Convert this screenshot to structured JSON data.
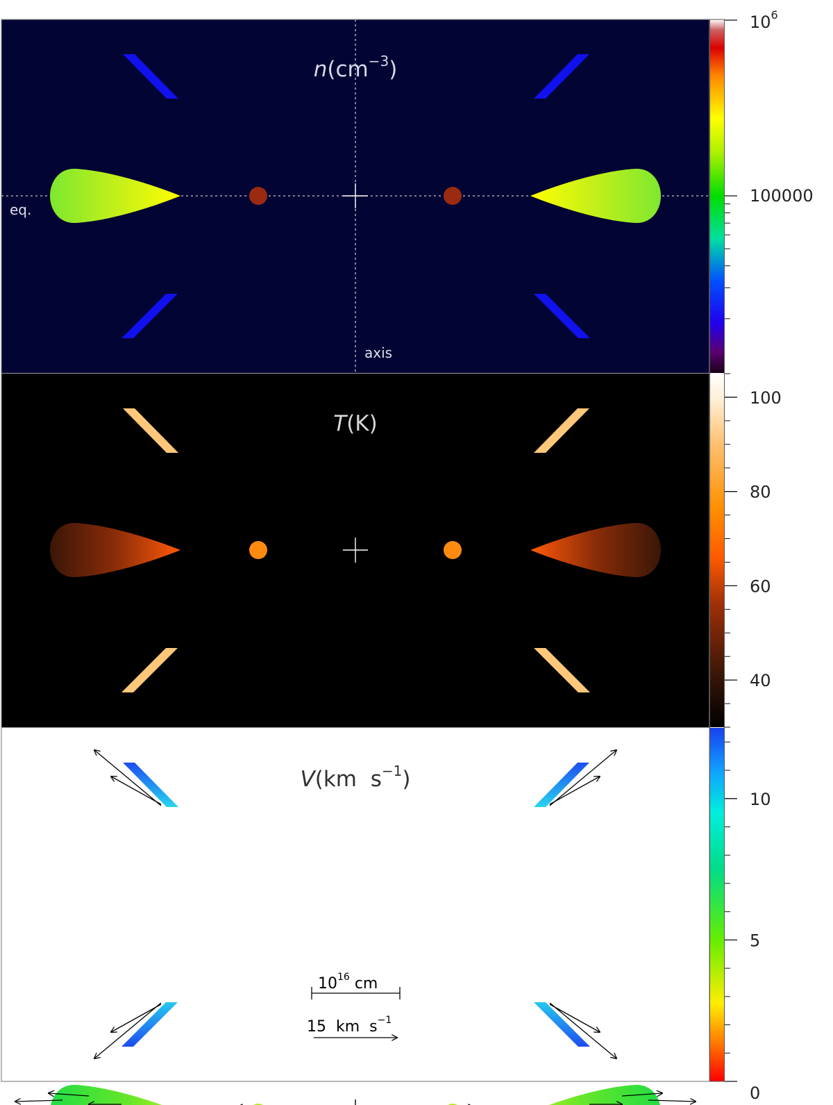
{
  "panels": {
    "density": {
      "title_var": "n",
      "title_unit": "(cm",
      "title_exp": "−3",
      "title_close": ")",
      "label_eq": "eq.",
      "label_axis": "axis",
      "colorbar_ticks": [
        {
          "label": "10",
          "sup": "6",
          "frac": 1.0
        },
        {
          "label": "100000",
          "frac": 0.5
        }
      ]
    },
    "temperature": {
      "title_var": "T",
      "title_unit": "(K)",
      "colorbar_ticks": [
        {
          "label": "100",
          "value": 100
        },
        {
          "label": "80",
          "value": 80
        },
        {
          "label": "60",
          "value": 60
        },
        {
          "label": "40",
          "value": 40
        }
      ],
      "colorbar_range": [
        30,
        105
      ]
    },
    "velocity": {
      "title_var": "V",
      "title_unit": "(km  s",
      "title_exp": "−1",
      "title_close": ")",
      "scale_length_base": "10",
      "scale_length_exp": "16",
      "scale_length_unit": " cm",
      "scale_velocity_text": "15  km  s",
      "scale_velocity_exp": "−1",
      "colorbar_ticks": [
        {
          "label": "10",
          "value": 10
        },
        {
          "label": "5",
          "value": 5
        },
        {
          "label": "0",
          "value": 0
        }
      ],
      "colorbar_range": [
        0,
        12.5
      ]
    }
  },
  "colors": {
    "density_bg": "#020433",
    "temperature_bg": "#000000",
    "velocity_bg": "#ffffff",
    "density_bar": "#1111ee",
    "temperature_bar": "#fec77a",
    "density_blob": "#9a2a10",
    "temperature_blob": "#ff8a10",
    "velocity_blob": "#b8ea22"
  }
}
